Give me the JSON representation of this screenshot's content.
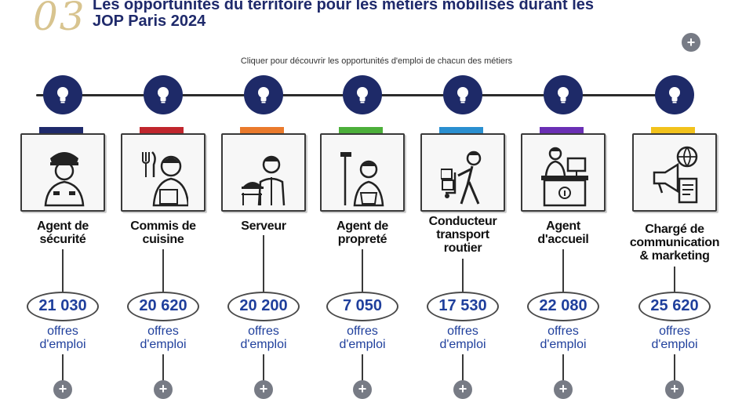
{
  "header": {
    "section_number": "03",
    "title_line1": "Les opportunités du territoire pour les métiers mobilisés durant les",
    "title_line2": "JOP Paris 2024",
    "expand_label": "+"
  },
  "instruction": "Cliquer pour découvrir les opportunités d'emploi de chacun des métiers",
  "jobs": [
    {
      "title_lines": [
        "Agent de",
        "sécurité"
      ],
      "count": "21 030",
      "offers_line1": "offres",
      "offers_line2": "d'emploi",
      "tape_color": "#1f2a6b",
      "icon": "security-guard-icon",
      "more_label": "+"
    },
    {
      "title_lines": [
        "Commis de",
        "cuisine"
      ],
      "count": "20 620",
      "offers_line1": "offres",
      "offers_line2": "d'emploi",
      "tape_color": "#c0262d",
      "icon": "kitchen-assistant-icon",
      "more_label": "+"
    },
    {
      "title_lines": [
        "Serveur"
      ],
      "count": "20 200",
      "offers_line1": "offres",
      "offers_line2": "d'emploi",
      "tape_color": "#ea7a2c",
      "icon": "waiter-icon",
      "more_label": "+"
    },
    {
      "title_lines": [
        "Agent de",
        "propreté"
      ],
      "count": "7 050",
      "offers_line1": "offres",
      "offers_line2": "d'emploi",
      "tape_color": "#4caf3a",
      "icon": "cleaner-icon",
      "more_label": "+"
    },
    {
      "title_lines": [
        "Conducteur",
        "transport",
        "routier"
      ],
      "count": "17 530",
      "offers_line1": "offres",
      "offers_line2": "d'emploi",
      "tape_color": "#2a8fd0",
      "icon": "delivery-driver-icon",
      "more_label": "+"
    },
    {
      "title_lines": [
        "Agent",
        "d'accueil"
      ],
      "count": "22 080",
      "offers_line1": "offres",
      "offers_line2": "d'emploi",
      "tape_color": "#6a2fb4",
      "icon": "receptionist-icon",
      "more_label": "+"
    },
    {
      "title_lines": [
        "Chargé de",
        "communication",
        "& marketing"
      ],
      "count": "25 620",
      "offers_line1": "offres",
      "offers_line2": "d'emploi",
      "tape_color": "#f2c21c",
      "icon": "communication-icon",
      "more_label": "+"
    }
  ]
}
